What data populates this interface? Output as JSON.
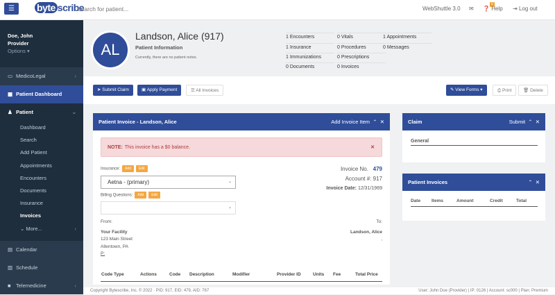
{
  "topbar": {
    "logo": "bytescribe",
    "search_placeholder": "Search for patient...",
    "version": "WebShuttle 3.0",
    "mail_badge": "0",
    "help": "Help",
    "logout": "Log out"
  },
  "user": {
    "name": "Doe, John",
    "role": "Provider",
    "options": "Options"
  },
  "sidebar": {
    "medicolegal": "MedicoLegal",
    "dashboard": "Patient Dashboard",
    "patient": "Patient",
    "sub": [
      "Dashboard",
      "Search",
      "Add Patient",
      "Appointments",
      "Encounters",
      "Documents",
      "Insurance",
      "Invoices"
    ],
    "more": "More...",
    "calendar": "Calendar",
    "schedule": "Schedule",
    "telemedicine": "Telemedicine"
  },
  "patient": {
    "initials": "AL",
    "name": "Landson, Alice (917)",
    "info": "Patient Information",
    "notes": "Currently, there are no patient notes.",
    "stats": [
      "1 Encounters",
      "1 Insurance",
      "1 Immunizations",
      "0 Documents",
      "0 Vitals",
      "0 Procedures",
      "0 Prescriptions",
      "0 Invoices",
      "1 Appointments",
      "0 Messages"
    ]
  },
  "toolbar": {
    "submit_claim": "Submit Claim",
    "apply_payment": "Apply Payment",
    "all_invoices": "All Invoices",
    "view_forms": "View Forms",
    "print": "Print",
    "delete": "Delete"
  },
  "invoice": {
    "title": "Patient Invoice - Landson, Alice",
    "add_item": "Add Invoice Item",
    "note_label": "NOTE:",
    "note": "This invoice has a $0 balance.",
    "insurance_label": "Insurance:",
    "add": "Add",
    "edit": "Edit",
    "insurance_value": "Aetna - (primary)",
    "billing_label": "Billing Questions:",
    "billing_value": "",
    "invoice_no_label": "Invoice No.",
    "invoice_no": "479",
    "account_label": "Account #:",
    "account": "917",
    "date_label": "Invoice Date:",
    "date": "12/31/1969",
    "from_label": "From:",
    "to_label": "To:",
    "from_name": "Your Facility",
    "from_street": "123 Main Street",
    "from_city": "Allentown, PA",
    "from_phone": "P:",
    "to_name": "Landson, Alice",
    "to_line": ",",
    "columns": [
      "Code Type",
      "Actions",
      "Code",
      "Description",
      "Modifier",
      "Provider ID",
      "Units",
      "Fee",
      "Total Price"
    ]
  },
  "claim": {
    "title": "Claim",
    "submit": "Submit",
    "general": "General"
  },
  "patient_invoices": {
    "title": "Patient Invoices",
    "columns": [
      "Date",
      "Items",
      "Amount",
      "Credit",
      "Total"
    ]
  },
  "footer": {
    "left": "Copyright Bytescribe, Inc. © 2022 · PID: 917, EID: 479, AID: 767",
    "right": "User: John Doe (Provider) | IP: 0126 | Account: sc000 | Plan: Premium"
  },
  "colors": {
    "primary": "#2f4d99",
    "sidebar": "#2a3b4d",
    "warning": "#f5a742",
    "alert_bg": "#f5d9db"
  }
}
